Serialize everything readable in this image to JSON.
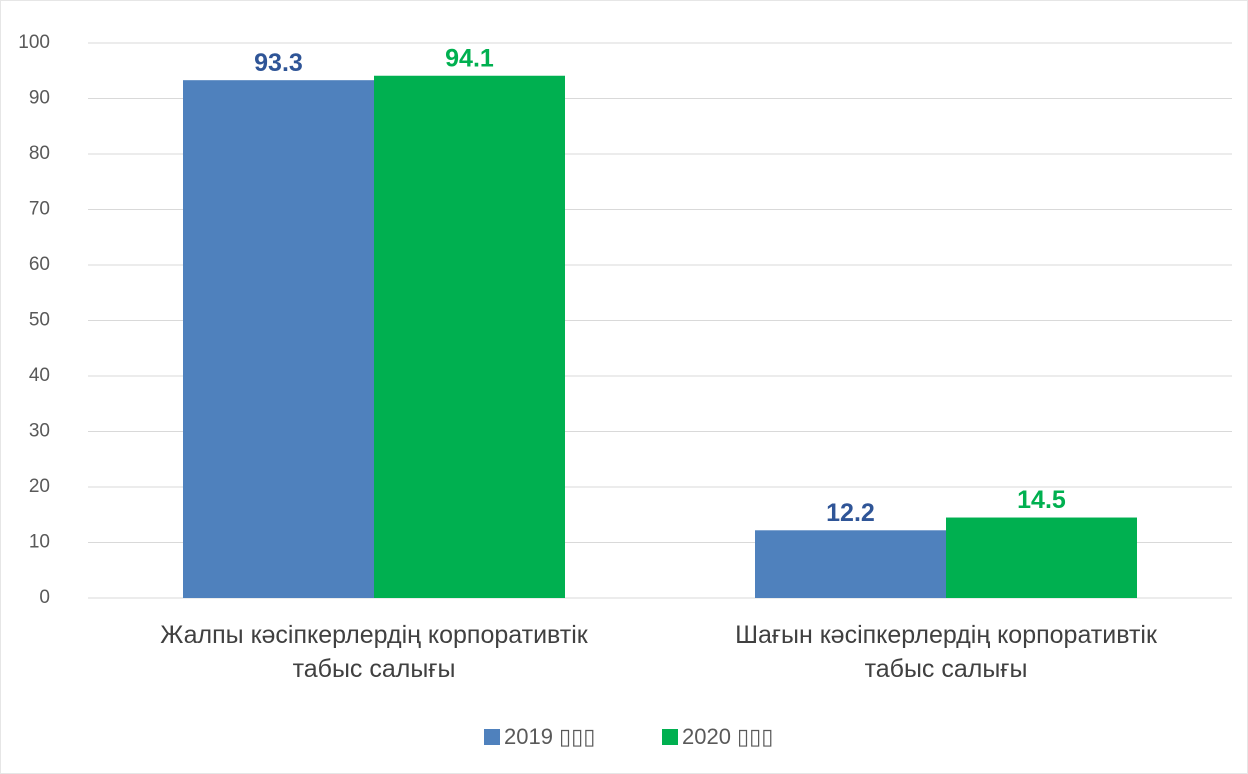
{
  "chart_data": {
    "type": "bar",
    "categories": [
      "Жалпы кәсіпкерлердің корпоративтік табыс салығы",
      "Шағын кәсіпкерлердің корпоративтік табыс салығы"
    ],
    "series": [
      {
        "name": "2019 ▯▯▯",
        "color": "#4f81bd",
        "label_color": "#2f5597",
        "values": [
          93.3,
          12.2
        ]
      },
      {
        "name": "2020 ▯▯▯",
        "color": "#00b050",
        "label_color": "#00b050",
        "values": [
          94.1,
          14.5
        ]
      }
    ],
    "ylim": [
      0,
      100
    ],
    "yticks": [
      0,
      10,
      20,
      30,
      40,
      50,
      60,
      70,
      80,
      90,
      100
    ],
    "grid": true,
    "legend": "bottom"
  }
}
